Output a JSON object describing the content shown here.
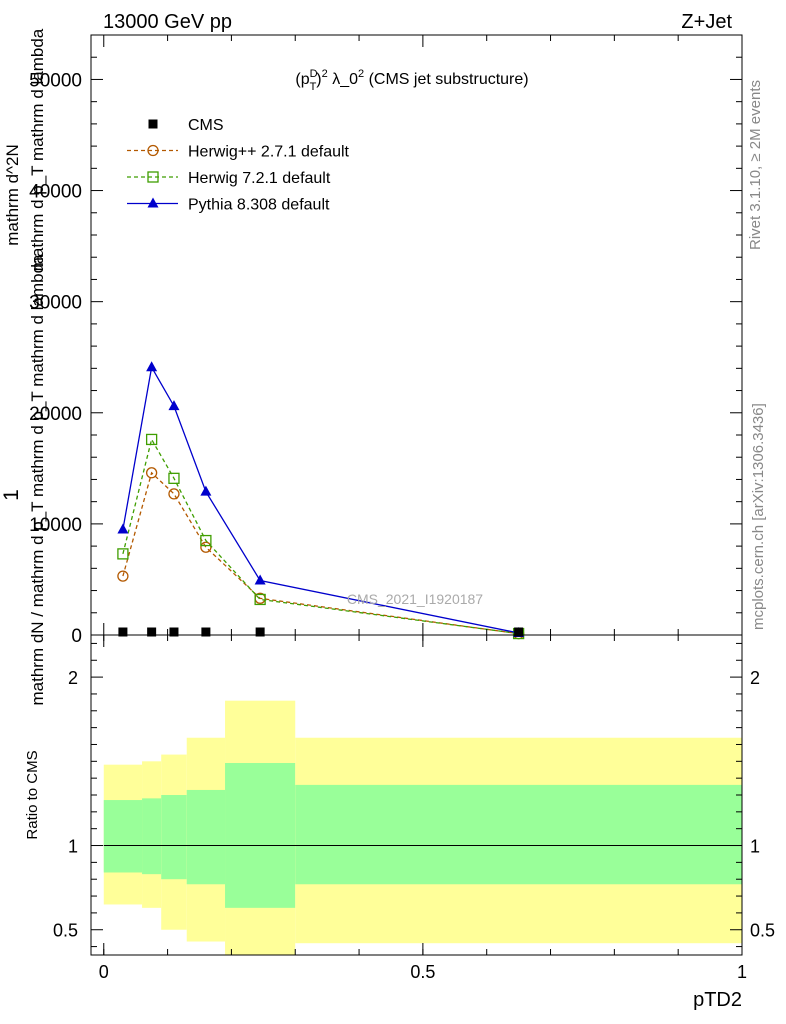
{
  "header": {
    "left": "13000 GeV pp",
    "right": "Z+Jet"
  },
  "side_labels": {
    "rivet": "Rivet 3.1.10, ≥ 2M events",
    "mcplots": "mcplots.cern.ch [arXiv:1306.3436]"
  },
  "watermark": "CMS_2021_I1920187",
  "chart_data": [
    {
      "type": "line",
      "title": "(p_T^D)^2 λ_0^2 (CMS jet substructure)",
      "title_parts": {
        "a": "(p",
        "sup1": "D",
        "sub1": "T",
        "b": ")",
        "sup2": "2",
        "c": " λ_0",
        "sup3": "2",
        "d": " (CMS jet substructure)"
      },
      "ylabel_lines": [
        "1",
        "mathrm dN / mathrm d p_T mathrm d p_T mathrm d lambda",
        "mathrm d^2N",
        "mathrm d p_T mathrm d lambda"
      ],
      "ylim": [
        0,
        54000
      ],
      "yticks": [
        0,
        10000,
        20000,
        30000,
        40000,
        50000
      ],
      "ytick_labels": [
        "0",
        "10000",
        "20000",
        "30000",
        "40000",
        "50000"
      ],
      "xlim": [
        -0.02,
        1.0
      ],
      "legend_position": "top-left",
      "series": [
        {
          "name": "CMS",
          "color": "#000000",
          "marker": "square-filled",
          "dash": "none",
          "x": [
            0.03,
            0.075,
            0.11,
            0.16,
            0.245,
            0.65
          ],
          "y": [
            0,
            0,
            0,
            0,
            0,
            0
          ]
        },
        {
          "name": "Herwig++ 2.7.1 default",
          "color": "#b35900",
          "marker": "circle-open",
          "dash": "dashed",
          "x": [
            0.03,
            0.075,
            0.11,
            0.16,
            0.245,
            0.65
          ],
          "y": [
            5300,
            14600,
            12700,
            7900,
            3300,
            120
          ]
        },
        {
          "name": "Herwig 7.2.1 default",
          "color": "#3f9e00",
          "marker": "square-open",
          "dash": "dashed",
          "x": [
            0.03,
            0.075,
            0.11,
            0.16,
            0.245,
            0.65
          ],
          "y": [
            7300,
            17600,
            14100,
            8500,
            3200,
            130
          ]
        },
        {
          "name": "Pythia 8.308 default",
          "color": "#0000cc",
          "marker": "triangle-filled",
          "dash": "none",
          "x": [
            0.03,
            0.075,
            0.11,
            0.16,
            0.245,
            0.65
          ],
          "y": [
            9500,
            24100,
            20600,
            12900,
            4900,
            180
          ]
        }
      ]
    },
    {
      "type": "area",
      "ylabel": "Ratio to CMS",
      "xlabel": "pTD2",
      "ylim": [
        0.35,
        2.25
      ],
      "xlim": [
        -0.02,
        1.0
      ],
      "xticks": [
        0,
        0.5,
        1
      ],
      "xtick_labels": [
        "0",
        "0.5",
        "1"
      ],
      "yticks": [
        0.5,
        1,
        2
      ],
      "ytick_labels": [
        "0.5",
        "1",
        "2"
      ],
      "reference_line": 1,
      "colors": {
        "outer": "#ffff99",
        "inner": "#99ff99"
      },
      "bins": [
        {
          "x0": 0.0,
          "x1": 0.06,
          "outer": [
            0.65,
            1.48
          ],
          "inner": [
            0.84,
            1.27
          ]
        },
        {
          "x0": 0.06,
          "x1": 0.09,
          "outer": [
            0.63,
            1.5
          ],
          "inner": [
            0.83,
            1.28
          ]
        },
        {
          "x0": 0.09,
          "x1": 0.13,
          "outer": [
            0.5,
            1.54
          ],
          "inner": [
            0.8,
            1.3
          ]
        },
        {
          "x0": 0.13,
          "x1": 0.19,
          "outer": [
            0.43,
            1.64
          ],
          "inner": [
            0.77,
            1.33
          ]
        },
        {
          "x0": 0.19,
          "x1": 0.3,
          "outer": [
            0.34,
            1.86
          ],
          "inner": [
            0.63,
            1.49
          ]
        },
        {
          "x0": 0.3,
          "x1": 1.0,
          "outer": [
            0.42,
            1.64
          ],
          "inner": [
            0.77,
            1.36
          ]
        }
      ]
    }
  ]
}
